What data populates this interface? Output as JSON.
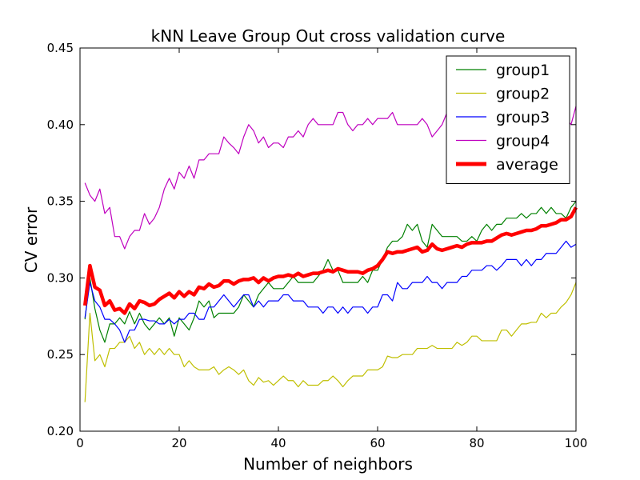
{
  "chart_data": {
    "type": "line",
    "title": "kNN Leave Group Out cross validation curve",
    "xlabel": "Number of neighbors",
    "ylabel": "CV error",
    "xlim": [
      0,
      100
    ],
    "ylim": [
      0.2,
      0.45
    ],
    "xticks": [
      "0",
      "20",
      "40",
      "60",
      "80",
      "100"
    ],
    "yticks": [
      "0.20",
      "0.25",
      "0.30",
      "0.35",
      "0.40",
      "0.45"
    ],
    "grid": false,
    "legend_position": "top-right",
    "x": [
      1,
      2,
      3,
      4,
      5,
      6,
      7,
      8,
      9,
      10,
      11,
      12,
      13,
      14,
      15,
      16,
      17,
      18,
      19,
      20,
      21,
      22,
      23,
      24,
      25,
      26,
      27,
      28,
      29,
      30,
      31,
      32,
      33,
      34,
      35,
      36,
      37,
      38,
      39,
      40,
      41,
      42,
      43,
      44,
      45,
      46,
      47,
      48,
      49,
      50,
      51,
      52,
      53,
      54,
      55,
      56,
      57,
      58,
      59,
      60,
      61,
      62,
      63,
      64,
      65,
      66,
      67,
      68,
      69,
      70,
      71,
      72,
      73,
      74,
      75,
      76,
      77,
      78,
      79,
      80,
      81,
      82,
      83,
      84,
      85,
      86,
      87,
      88,
      89,
      90,
      91,
      92,
      93,
      94,
      95,
      96,
      97,
      98,
      99,
      100
    ],
    "series": [
      {
        "name": "group1",
        "color": "#008000",
        "width": 1.2,
        "values": [
          0.273,
          0.3,
          0.28,
          0.266,
          0.258,
          0.27,
          0.27,
          0.274,
          0.27,
          0.278,
          0.27,
          0.277,
          0.27,
          0.266,
          0.27,
          0.274,
          0.27,
          0.274,
          0.262,
          0.274,
          0.27,
          0.266,
          0.274,
          0.285,
          0.281,
          0.285,
          0.274,
          0.277,
          0.277,
          0.277,
          0.277,
          0.281,
          0.289,
          0.285,
          0.281,
          0.289,
          0.293,
          0.297,
          0.293,
          0.293,
          0.293,
          0.297,
          0.301,
          0.297,
          0.297,
          0.297,
          0.297,
          0.301,
          0.305,
          0.312,
          0.305,
          0.305,
          0.297,
          0.297,
          0.297,
          0.297,
          0.301,
          0.297,
          0.305,
          0.305,
          0.312,
          0.32,
          0.324,
          0.324,
          0.327,
          0.335,
          0.331,
          0.335,
          0.324,
          0.32,
          0.335,
          0.331,
          0.327,
          0.327,
          0.327,
          0.327,
          0.324,
          0.324,
          0.327,
          0.324,
          0.331,
          0.335,
          0.331,
          0.335,
          0.335,
          0.339,
          0.339,
          0.339,
          0.342,
          0.339,
          0.342,
          0.342,
          0.346,
          0.342,
          0.346,
          0.342,
          0.342,
          0.339,
          0.346,
          0.35
        ]
      },
      {
        "name": "group2",
        "color": "#bfbf00",
        "width": 1.2,
        "values": [
          0.219,
          0.277,
          0.246,
          0.25,
          0.242,
          0.254,
          0.254,
          0.258,
          0.258,
          0.262,
          0.254,
          0.258,
          0.25,
          0.254,
          0.25,
          0.254,
          0.25,
          0.254,
          0.25,
          0.25,
          0.242,
          0.246,
          0.242,
          0.24,
          0.24,
          0.24,
          0.242,
          0.237,
          0.24,
          0.242,
          0.24,
          0.237,
          0.24,
          0.233,
          0.23,
          0.235,
          0.232,
          0.233,
          0.23,
          0.233,
          0.236,
          0.233,
          0.233,
          0.229,
          0.233,
          0.23,
          0.23,
          0.23,
          0.233,
          0.233,
          0.236,
          0.233,
          0.229,
          0.233,
          0.236,
          0.236,
          0.236,
          0.24,
          0.24,
          0.24,
          0.242,
          0.249,
          0.248,
          0.248,
          0.25,
          0.25,
          0.25,
          0.254,
          0.254,
          0.254,
          0.256,
          0.254,
          0.254,
          0.254,
          0.254,
          0.258,
          0.256,
          0.258,
          0.262,
          0.262,
          0.259,
          0.259,
          0.259,
          0.259,
          0.266,
          0.266,
          0.262,
          0.266,
          0.27,
          0.27,
          0.271,
          0.271,
          0.277,
          0.274,
          0.277,
          0.277,
          0.281,
          0.284,
          0.289,
          0.297
        ]
      },
      {
        "name": "group3",
        "color": "#0000ff",
        "width": 1.2,
        "values": [
          0.274,
          0.297,
          0.285,
          0.281,
          0.273,
          0.273,
          0.27,
          0.266,
          0.258,
          0.266,
          0.266,
          0.273,
          0.273,
          0.272,
          0.272,
          0.27,
          0.27,
          0.273,
          0.27,
          0.273,
          0.273,
          0.277,
          0.277,
          0.273,
          0.273,
          0.281,
          0.281,
          0.285,
          0.289,
          0.285,
          0.281,
          0.285,
          0.289,
          0.289,
          0.281,
          0.285,
          0.281,
          0.285,
          0.285,
          0.285,
          0.289,
          0.289,
          0.285,
          0.285,
          0.285,
          0.281,
          0.281,
          0.281,
          0.277,
          0.281,
          0.281,
          0.277,
          0.281,
          0.277,
          0.281,
          0.281,
          0.281,
          0.277,
          0.281,
          0.281,
          0.289,
          0.289,
          0.285,
          0.297,
          0.293,
          0.293,
          0.297,
          0.297,
          0.297,
          0.301,
          0.297,
          0.297,
          0.293,
          0.297,
          0.297,
          0.297,
          0.301,
          0.301,
          0.305,
          0.305,
          0.305,
          0.308,
          0.308,
          0.305,
          0.308,
          0.312,
          0.312,
          0.312,
          0.308,
          0.312,
          0.308,
          0.312,
          0.312,
          0.316,
          0.316,
          0.316,
          0.32,
          0.324,
          0.32,
          0.322
        ]
      },
      {
        "name": "group4",
        "color": "#bf00bf",
        "width": 1.2,
        "values": [
          0.362,
          0.354,
          0.35,
          0.358,
          0.342,
          0.346,
          0.327,
          0.327,
          0.319,
          0.327,
          0.331,
          0.331,
          0.342,
          0.335,
          0.339,
          0.346,
          0.358,
          0.365,
          0.358,
          0.369,
          0.365,
          0.373,
          0.365,
          0.377,
          0.377,
          0.381,
          0.381,
          0.381,
          0.392,
          0.388,
          0.385,
          0.381,
          0.392,
          0.4,
          0.396,
          0.388,
          0.392,
          0.385,
          0.388,
          0.388,
          0.385,
          0.392,
          0.392,
          0.396,
          0.392,
          0.4,
          0.404,
          0.4,
          0.4,
          0.4,
          0.4,
          0.408,
          0.408,
          0.4,
          0.396,
          0.4,
          0.4,
          0.404,
          0.4,
          0.404,
          0.404,
          0.404,
          0.408,
          0.4,
          0.4,
          0.4,
          0.4,
          0.4,
          0.404,
          0.4,
          0.392,
          0.396,
          0.4,
          0.408,
          0.408,
          0.404,
          0.4,
          0.4,
          0.4,
          0.404,
          0.404,
          0.404,
          0.404,
          0.408,
          0.408,
          0.404,
          0.404,
          0.404,
          0.408,
          0.404,
          0.404,
          0.404,
          0.404,
          0.404,
          0.404,
          0.408,
          0.4,
          0.404,
          0.4,
          0.412
        ]
      },
      {
        "name": "average",
        "color": "#ff0000",
        "width": 4.5,
        "values": [
          0.282,
          0.308,
          0.294,
          0.292,
          0.282,
          0.285,
          0.279,
          0.28,
          0.277,
          0.283,
          0.28,
          0.285,
          0.284,
          0.282,
          0.283,
          0.286,
          0.288,
          0.29,
          0.287,
          0.291,
          0.288,
          0.291,
          0.289,
          0.294,
          0.293,
          0.296,
          0.294,
          0.295,
          0.298,
          0.298,
          0.296,
          0.298,
          0.299,
          0.299,
          0.3,
          0.297,
          0.3,
          0.298,
          0.3,
          0.301,
          0.301,
          0.302,
          0.301,
          0.303,
          0.301,
          0.302,
          0.303,
          0.303,
          0.304,
          0.305,
          0.304,
          0.306,
          0.305,
          0.304,
          0.304,
          0.304,
          0.303,
          0.305,
          0.306,
          0.308,
          0.312,
          0.317,
          0.316,
          0.317,
          0.317,
          0.318,
          0.319,
          0.32,
          0.317,
          0.318,
          0.322,
          0.319,
          0.318,
          0.319,
          0.32,
          0.321,
          0.32,
          0.322,
          0.323,
          0.323,
          0.323,
          0.324,
          0.324,
          0.326,
          0.328,
          0.329,
          0.328,
          0.329,
          0.33,
          0.331,
          0.331,
          0.332,
          0.334,
          0.334,
          0.335,
          0.336,
          0.338,
          0.338,
          0.34,
          0.346
        ]
      }
    ]
  }
}
